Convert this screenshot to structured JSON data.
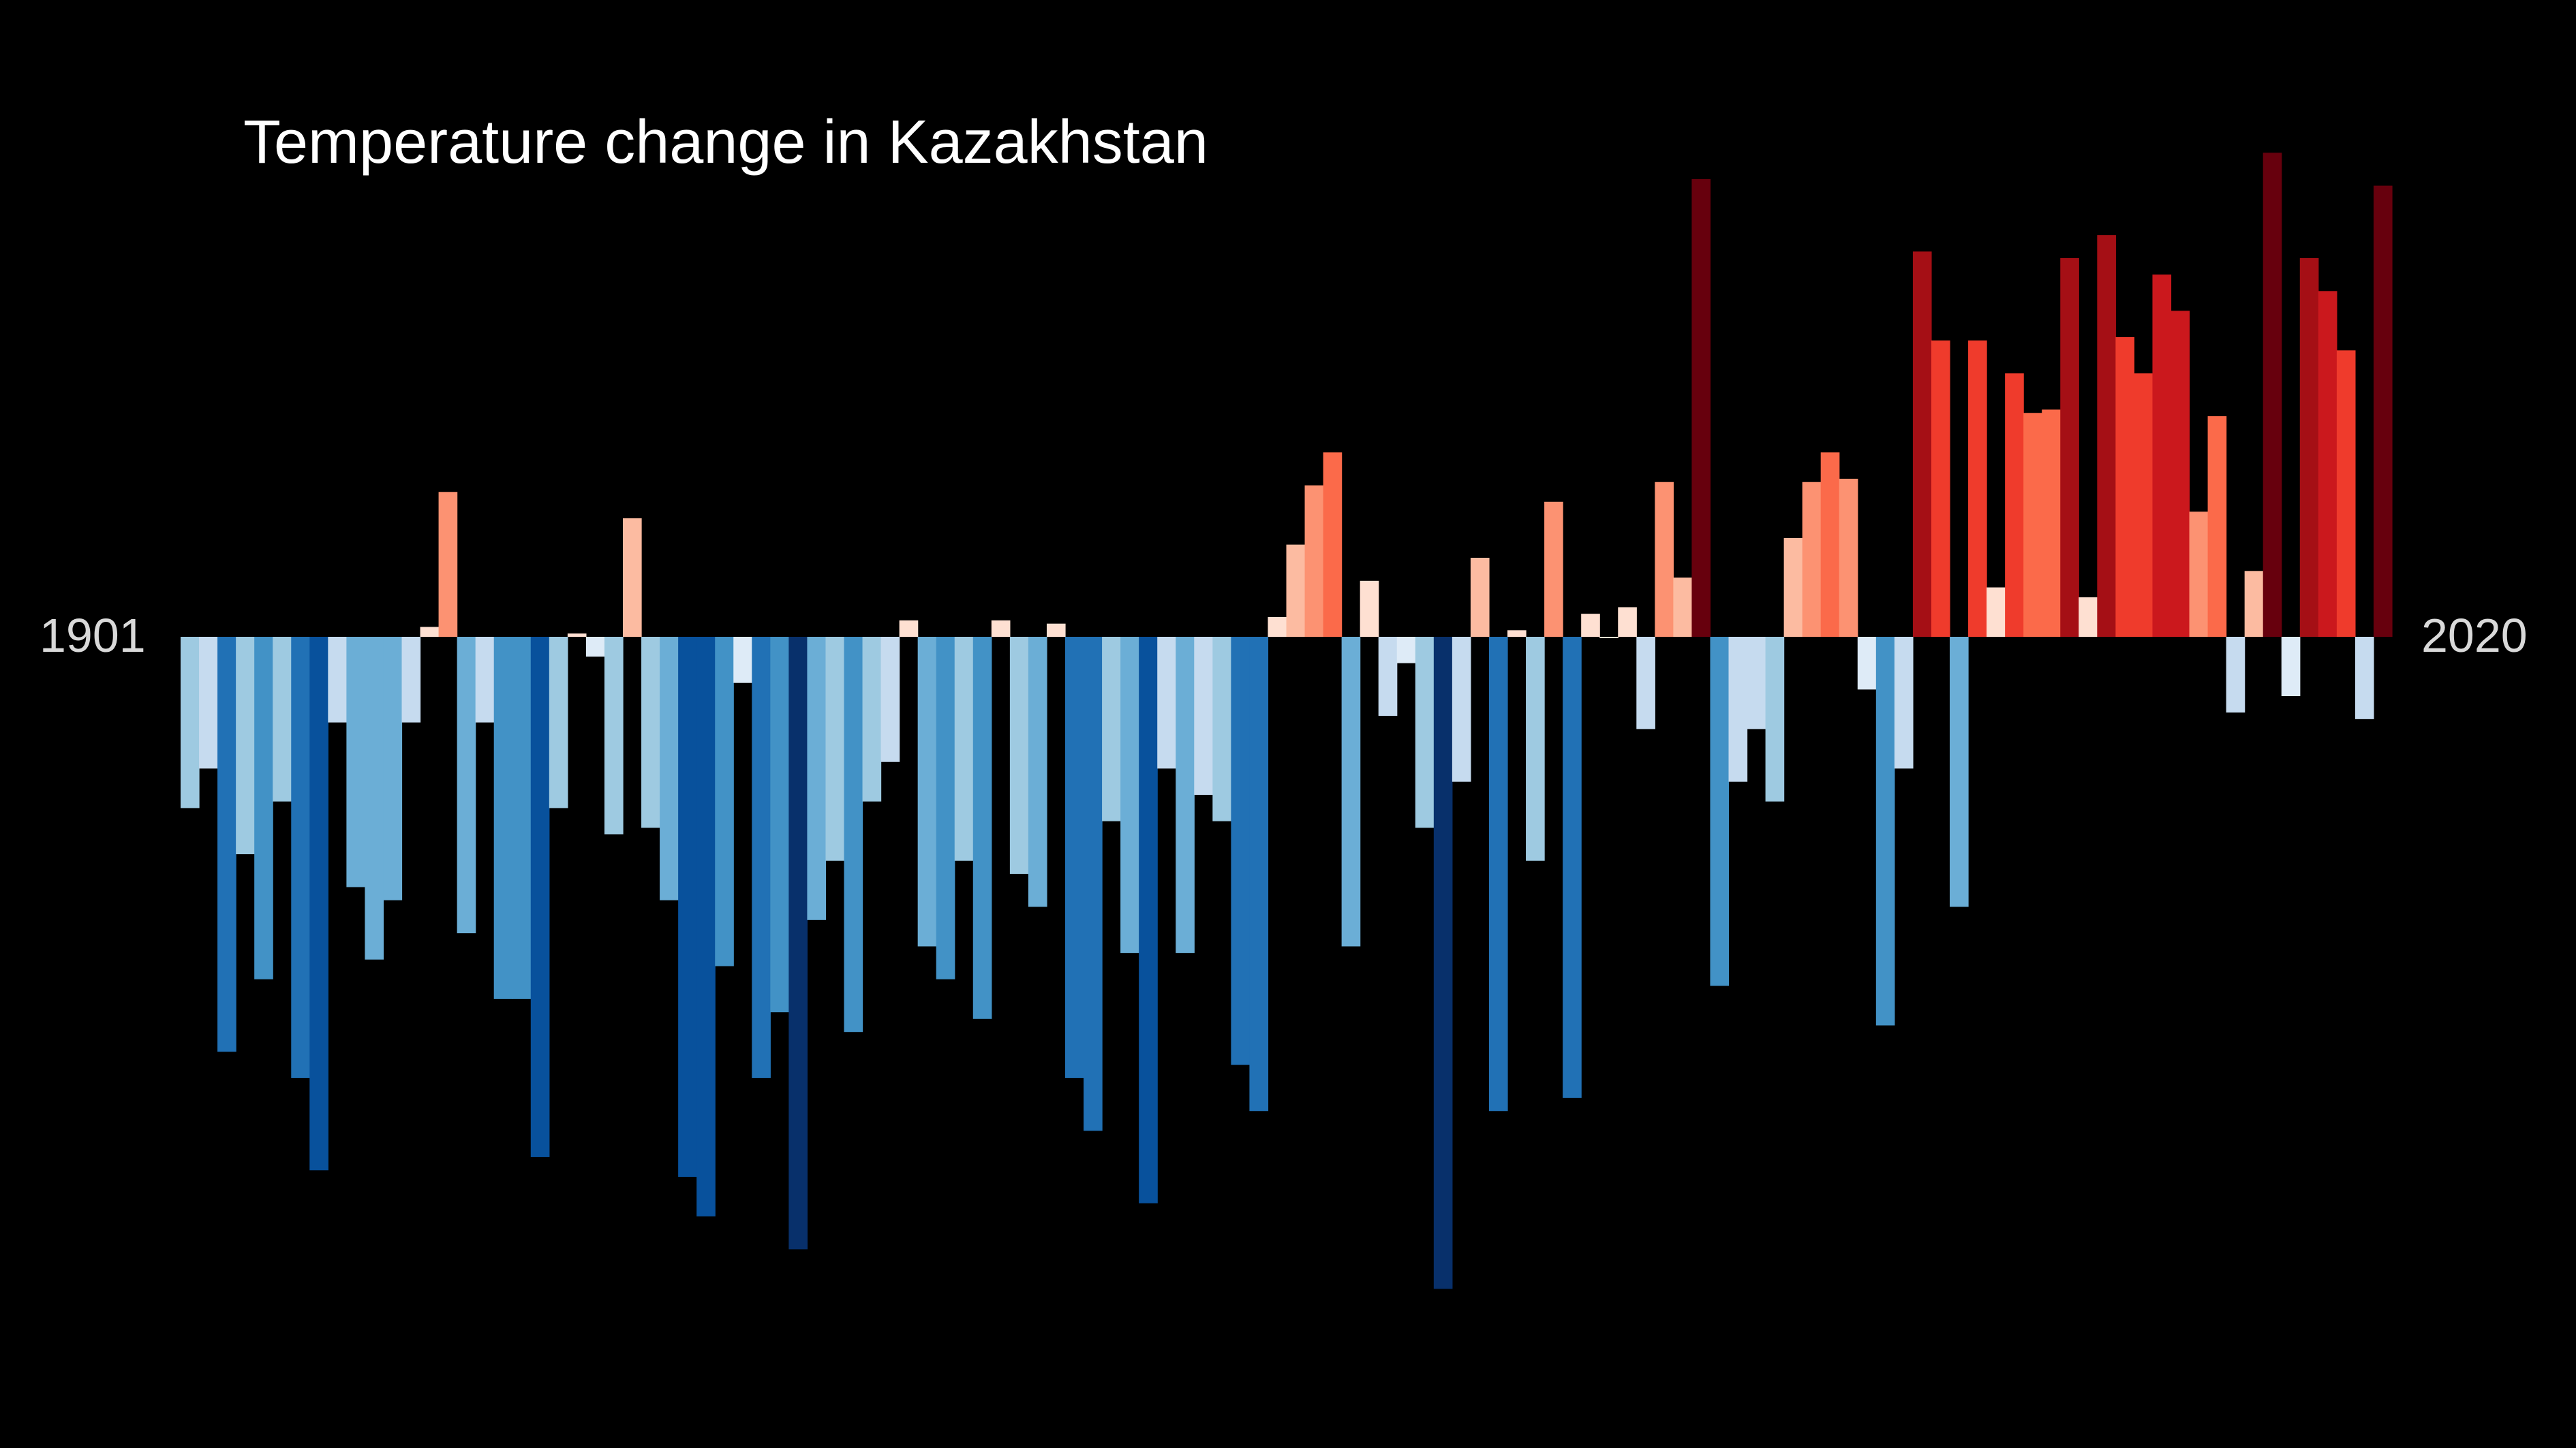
{
  "chart_data": {
    "type": "bar",
    "title": "Temperature change in Kazakhstan",
    "x_start_label": "1901",
    "x_end_label": "2020",
    "year_start": 1901,
    "year_end": 2020,
    "ylim": [
      -1.0,
      0.74
    ],
    "values": [
      -0.26,
      -0.2,
      -0.63,
      -0.33,
      -0.52,
      -0.25,
      -0.67,
      -0.81,
      -0.13,
      -0.38,
      -0.49,
      -0.4,
      -0.13,
      0.015,
      0.22,
      -0.45,
      -0.13,
      -0.55,
      -0.55,
      -0.79,
      -0.26,
      0.005,
      -0.03,
      -0.3,
      0.18,
      -0.29,
      -0.4,
      -0.82,
      -0.88,
      -0.5,
      -0.07,
      -0.67,
      -0.57,
      -0.93,
      -0.43,
      -0.34,
      -0.6,
      -0.25,
      -0.19,
      0.025,
      -0.47,
      -0.52,
      -0.34,
      -0.58,
      0.025,
      -0.36,
      -0.41,
      0.02,
      -0.67,
      -0.75,
      -0.28,
      -0.48,
      -0.86,
      -0.2,
      -0.48,
      -0.24,
      -0.28,
      -0.65,
      -0.72,
      0.03,
      0.14,
      0.23,
      0.28,
      -0.47,
      0.085,
      -0.12,
      -0.04,
      -0.29,
      -0.99,
      -0.22,
      0.12,
      -0.72,
      0.01,
      -0.34,
      0.205,
      -0.7,
      0.035,
      0.0,
      0.045,
      -0.14,
      0.235,
      0.09,
      0.695,
      -0.53,
      -0.22,
      -0.14,
      -0.25,
      0.15,
      0.235,
      0.28,
      0.24,
      -0.08,
      -0.59,
      -0.2,
      0.585,
      0.45,
      -0.41,
      0.45,
      0.075,
      0.4,
      0.34,
      0.345,
      0.575,
      0.06,
      0.61,
      0.455,
      0.4,
      0.55,
      0.495,
      0.19,
      0.335,
      -0.115,
      0.1,
      0.735,
      -0.09,
      0.575,
      0.525,
      0.435,
      -0.125,
      0.685
    ]
  }
}
